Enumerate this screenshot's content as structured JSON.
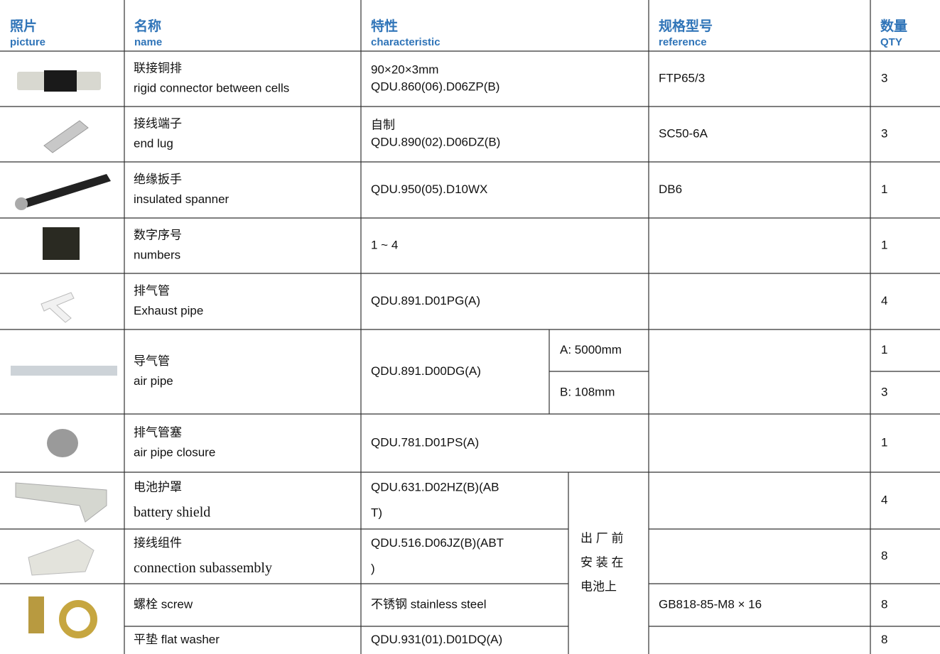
{
  "table": {
    "header": [
      {
        "zh": "照片",
        "en": "picture"
      },
      {
        "zh": "名称",
        "en": "name"
      },
      {
        "zh": "特性",
        "en": "characteristic"
      },
      {
        "zh": "规格型号",
        "en": "reference"
      },
      {
        "zh": "数量",
        "en": "QTY"
      }
    ],
    "rows": [
      {
        "name": [
          "联接铜排",
          "rigid connector between cells"
        ],
        "characteristic": [
          "90×20×3mm",
          "QDU.860(06).D06ZP(B)"
        ],
        "reference": "FTP65/3",
        "qty": [
          3
        ]
      },
      {
        "name": [
          "接线端子",
          "end lug"
        ],
        "characteristic": [
          "自制",
          "QDU.890(02).D06DZ(B)"
        ],
        "reference": "SC50-6A",
        "qty": [
          3
        ]
      },
      {
        "name": [
          "绝缘扳手",
          "insulated spanner"
        ],
        "characteristic": [
          "QDU.950(05).D10WX"
        ],
        "reference": "DB6",
        "qty": [
          1
        ]
      },
      {
        "name": [
          "数字序号",
          "numbers"
        ],
        "characteristic": [
          "1 ~ 4"
        ],
        "qty": [
          1
        ]
      },
      {
        "name": [
          "排气管",
          "Exhaust pipe"
        ],
        "characteristic": [
          "QDU.891.D01PG(A)"
        ],
        "qty": [
          4
        ]
      },
      {
        "name": [
          "导气管",
          "air pipe"
        ],
        "characteristic": [
          "QDU.891.D00DG(A)"
        ],
        "variants": [
          "A: 5000mm",
          "B: 108mm"
        ],
        "qty": [
          1,
          3
        ]
      },
      {
        "name": [
          "排气管塞",
          "air pipe closure"
        ],
        "characteristic": [
          "QDU.781.D01PS(A)"
        ],
        "qty": [
          1
        ]
      },
      {
        "name": [
          "电池护罩",
          "battery shield"
        ],
        "characteristic": [
          "QDU.631.D02HZ(B)(AB",
          "T)"
        ],
        "qty": [
          4
        ]
      },
      {
        "name": [
          "接线组件",
          "connection subassembly"
        ],
        "characteristic": [
          "QDU.516.D06JZ(B)(ABT",
          ")"
        ],
        "qty": [
          8
        ]
      },
      {
        "name": [
          "螺栓 screw"
        ],
        "characteristic": [
          "不锈钢 stainless steel"
        ],
        "reference": "GB818-85-M8 × 16",
        "qty": [
          8
        ]
      },
      {
        "name": [
          "平垫 flat washer"
        ],
        "characteristic": [
          "QDU.931(01).D01DQ(A)"
        ],
        "qty": [
          8
        ]
      }
    ],
    "note": [
      "出 厂 前",
      "安 装 在",
      "电池上"
    ]
  }
}
